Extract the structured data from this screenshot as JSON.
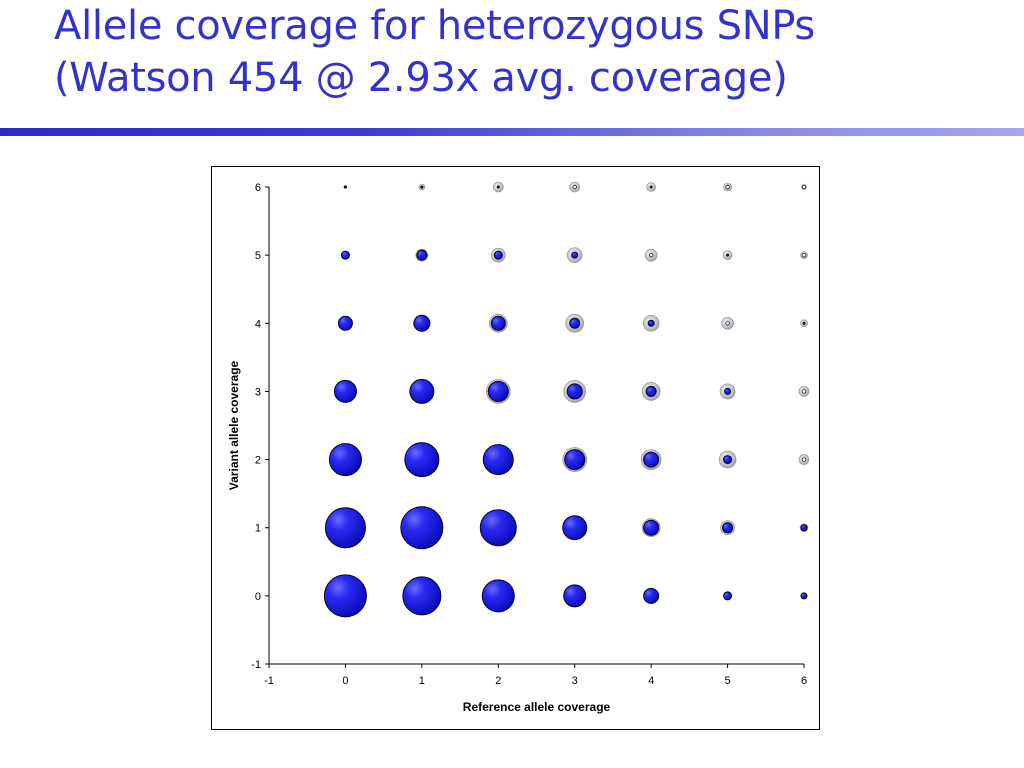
{
  "title": {
    "line1": "Allele coverage for heterozygous SNPs",
    "line2": "(Watson 454 @ 2.93x avg. coverage)"
  },
  "colors": {
    "title": "#3333cc",
    "rule_start": "#2b2bc8",
    "rule_end": "#a6a6ef",
    "bubble_fill": "#1a1ae6",
    "bubble_ring": "#a0a0a0"
  },
  "chart_data": {
    "type": "scatter",
    "subtype": "bubble",
    "title": "",
    "xlabel": "Reference allele coverage",
    "ylabel": "Variant allele coverage",
    "xlim": [
      -1,
      6
    ],
    "ylim": [
      -1,
      6
    ],
    "xticks": [
      "-1",
      "0",
      "1",
      "2",
      "3",
      "4",
      "5",
      "6"
    ],
    "yticks": [
      "-1",
      "0",
      "1",
      "2",
      "3",
      "4",
      "5",
      "6"
    ],
    "grid": false,
    "legend": "none",
    "series": [
      {
        "points": [
          {
            "x": 0,
            "y": 0,
            "size": 21
          },
          {
            "x": 1,
            "y": 0,
            "size": 19
          },
          {
            "x": 2,
            "y": 0,
            "size": 16
          },
          {
            "x": 3,
            "y": 0,
            "size": 11
          },
          {
            "x": 4,
            "y": 0,
            "size": 7.5
          },
          {
            "x": 5,
            "y": 0,
            "size": 4
          },
          {
            "x": 6,
            "y": 0,
            "size": 3
          },
          {
            "x": 0,
            "y": 1,
            "size": 20
          },
          {
            "x": 1,
            "y": 1,
            "size": 21
          },
          {
            "x": 2,
            "y": 1,
            "size": 18
          },
          {
            "x": 3,
            "y": 1,
            "size": 12
          },
          {
            "x": 4,
            "y": 1,
            "size": 7.5
          },
          {
            "x": 5,
            "y": 1,
            "size": 5
          },
          {
            "x": 6,
            "y": 1,
            "size": 3
          },
          {
            "x": 0,
            "y": 2,
            "size": 16
          },
          {
            "x": 1,
            "y": 2,
            "size": 17
          },
          {
            "x": 2,
            "y": 2,
            "size": 15
          },
          {
            "x": 3,
            "y": 2,
            "size": 10
          },
          {
            "x": 4,
            "y": 2,
            "size": 7.5
          },
          {
            "x": 5,
            "y": 2,
            "size": 4
          },
          {
            "x": 6,
            "y": 2,
            "size": 0
          },
          {
            "x": 0,
            "y": 3,
            "size": 11
          },
          {
            "x": 1,
            "y": 3,
            "size": 12
          },
          {
            "x": 2,
            "y": 3,
            "size": 10
          },
          {
            "x": 3,
            "y": 3,
            "size": 7.5
          },
          {
            "x": 4,
            "y": 3,
            "size": 5
          },
          {
            "x": 5,
            "y": 3,
            "size": 3
          },
          {
            "x": 6,
            "y": 3,
            "size": 0
          },
          {
            "x": 0,
            "y": 4,
            "size": 7
          },
          {
            "x": 1,
            "y": 4,
            "size": 8
          },
          {
            "x": 2,
            "y": 4,
            "size": 7
          },
          {
            "x": 3,
            "y": 4,
            "size": 5
          },
          {
            "x": 4,
            "y": 4,
            "size": 3
          },
          {
            "x": 5,
            "y": 4,
            "size": 0
          },
          {
            "x": 6,
            "y": 4,
            "size": 1
          },
          {
            "x": 0,
            "y": 5,
            "size": 4
          },
          {
            "x": 1,
            "y": 5,
            "size": 5
          },
          {
            "x": 2,
            "y": 5,
            "size": 4
          },
          {
            "x": 3,
            "y": 5,
            "size": 3
          },
          {
            "x": 4,
            "y": 5,
            "size": 0
          },
          {
            "x": 5,
            "y": 5,
            "size": 1
          },
          {
            "x": 6,
            "y": 5,
            "size": 0
          },
          {
            "x": 0,
            "y": 6,
            "size": 1
          },
          {
            "x": 1,
            "y": 6,
            "size": 1
          },
          {
            "x": 2,
            "y": 6,
            "size": 1
          },
          {
            "x": 3,
            "y": 6,
            "size": 0
          },
          {
            "x": 4,
            "y": 6,
            "size": 1
          },
          {
            "x": 5,
            "y": 6,
            "size": 0
          },
          {
            "x": 6,
            "y": 6,
            "size": 0
          }
        ]
      },
      {
        "points": [
          {
            "x": 0,
            "y": 0,
            "size": 0
          },
          {
            "x": 1,
            "y": 0,
            "size": 0
          },
          {
            "x": 2,
            "y": 0,
            "size": 0
          },
          {
            "x": 3,
            "y": 0,
            "size": 0
          },
          {
            "x": 4,
            "y": 0,
            "size": 0
          },
          {
            "x": 5,
            "y": 0,
            "size": 0
          },
          {
            "x": 6,
            "y": 0,
            "size": 0
          },
          {
            "x": 0,
            "y": 1,
            "size": 0
          },
          {
            "x": 1,
            "y": 1,
            "size": 0
          },
          {
            "x": 2,
            "y": 1,
            "size": 0
          },
          {
            "x": 3,
            "y": 1,
            "size": 0
          },
          {
            "x": 4,
            "y": 1,
            "size": 9
          },
          {
            "x": 5,
            "y": 1,
            "size": 7
          },
          {
            "x": 6,
            "y": 1,
            "size": 4
          },
          {
            "x": 0,
            "y": 2,
            "size": 0
          },
          {
            "x": 1,
            "y": 2,
            "size": 0
          },
          {
            "x": 2,
            "y": 2,
            "size": 0
          },
          {
            "x": 3,
            "y": 2,
            "size": 12
          },
          {
            "x": 4,
            "y": 2,
            "size": 10
          },
          {
            "x": 5,
            "y": 2,
            "size": 8.5
          },
          {
            "x": 6,
            "y": 2,
            "size": 5
          },
          {
            "x": 0,
            "y": 3,
            "size": 0
          },
          {
            "x": 1,
            "y": 3,
            "size": 0
          },
          {
            "x": 2,
            "y": 3,
            "size": 12
          },
          {
            "x": 3,
            "y": 3,
            "size": 11
          },
          {
            "x": 4,
            "y": 3,
            "size": 9
          },
          {
            "x": 5,
            "y": 3,
            "size": 7.5
          },
          {
            "x": 6,
            "y": 3,
            "size": 5
          },
          {
            "x": 0,
            "y": 4,
            "size": 0
          },
          {
            "x": 1,
            "y": 4,
            "size": 0
          },
          {
            "x": 2,
            "y": 4,
            "size": 9
          },
          {
            "x": 3,
            "y": 4,
            "size": 9
          },
          {
            "x": 4,
            "y": 4,
            "size": 8
          },
          {
            "x": 5,
            "y": 4,
            "size": 6
          },
          {
            "x": 6,
            "y": 4,
            "size": 3.5
          },
          {
            "x": 0,
            "y": 5,
            "size": 0
          },
          {
            "x": 1,
            "y": 5,
            "size": 6
          },
          {
            "x": 2,
            "y": 5,
            "size": 7
          },
          {
            "x": 3,
            "y": 5,
            "size": 7.5
          },
          {
            "x": 4,
            "y": 5,
            "size": 6
          },
          {
            "x": 5,
            "y": 5,
            "size": 4.5
          },
          {
            "x": 6,
            "y": 5,
            "size": 3.5
          },
          {
            "x": 0,
            "y": 6,
            "size": 1.5
          },
          {
            "x": 1,
            "y": 6,
            "size": 3
          },
          {
            "x": 2,
            "y": 6,
            "size": 5
          },
          {
            "x": 3,
            "y": 6,
            "size": 5
          },
          {
            "x": 4,
            "y": 6,
            "size": 4.5
          },
          {
            "x": 5,
            "y": 6,
            "size": 4
          },
          {
            "x": 6,
            "y": 6,
            "size": 2.5
          }
        ]
      }
    ]
  }
}
